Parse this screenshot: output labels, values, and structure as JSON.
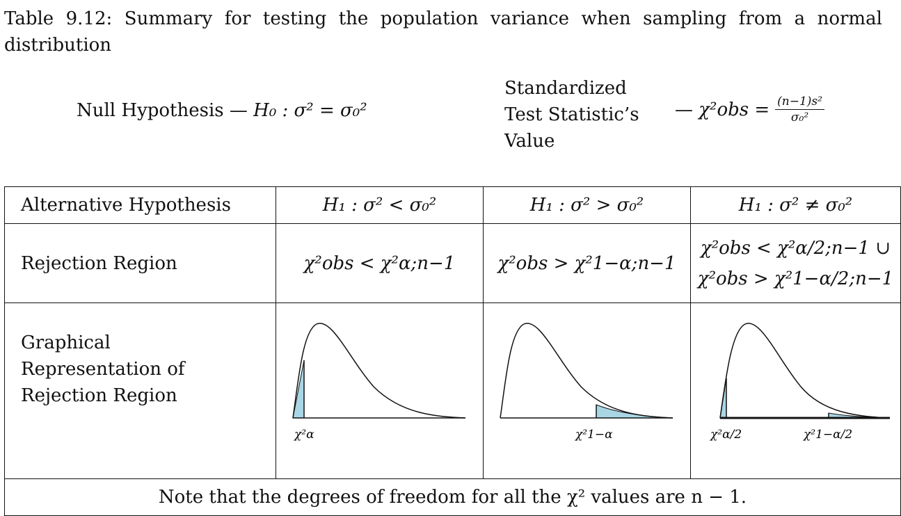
{
  "caption": {
    "line1_words": [
      "Table",
      "9.12:",
      "Summary",
      "for",
      "testing",
      "the",
      "population",
      "variance",
      "when",
      "sampling",
      "from",
      "a",
      "normal"
    ],
    "line2": "distribution"
  },
  "header": {
    "null_label": "Null Hypothesis",
    "dash": "—",
    "null_formula": "H₀ : σ² = σ₀²",
    "std_line1": "Standardized",
    "std_line2": "Test Statistic’s",
    "std_line3": "Value",
    "stat_lhs": "χ²obs =",
    "stat_num": "(n−1)s²",
    "stat_den": "σ₀²"
  },
  "table": {
    "row_alt_label": "Alternative Hypothesis",
    "alt": [
      "H₁ : σ² < σ₀²",
      "H₁ : σ² > σ₀²",
      "H₁ : σ² ≠ σ₀²"
    ],
    "row_rej_label": "Rejection Region",
    "rej": [
      "χ²obs < χ²α;n−1",
      "χ²obs > χ²1−α;n−1"
    ],
    "rej_two_line1": "χ²obs < χ²α/2;n−1 ∪",
    "rej_two_line2": "χ²obs > χ²1−α/2;n−1",
    "row_graph_label_1": "Graphical",
    "row_graph_label_2": "Representation of",
    "row_graph_label_3": "Rejection Region",
    "graph_labels": {
      "left": "χ²α",
      "right": "χ²1−α",
      "two_left": "χ²α/2",
      "two_right": "χ²1−α/2"
    },
    "shade_color": "#a9d6e5",
    "note": "Note that the degrees of freedom for all the χ² values are n − 1."
  }
}
